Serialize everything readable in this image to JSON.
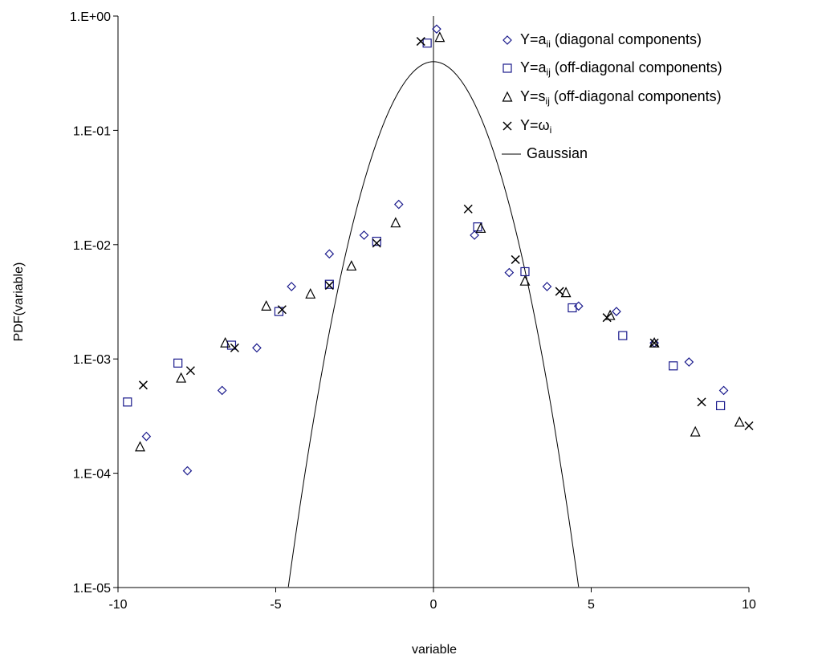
{
  "chart_data": {
    "type": "scatter",
    "xlabel": "variable",
    "ylabel": "PDF(variable)",
    "xlim": [
      -10,
      10
    ],
    "ylim": [
      1e-05,
      1
    ],
    "yscale": "log",
    "grid": false,
    "legend_position": "top-right",
    "x_ticks": [
      {
        "value": -10,
        "label": "-10"
      },
      {
        "value": -5,
        "label": "-5"
      },
      {
        "value": 0,
        "label": "0"
      },
      {
        "value": 5,
        "label": "5"
      },
      {
        "value": 10,
        "label": "10"
      }
    ],
    "y_ticks": [
      {
        "value": 1,
        "label": "1.E+00"
      },
      {
        "value": 0.1,
        "label": "1.E-01"
      },
      {
        "value": 0.01,
        "label": "1.E-02"
      },
      {
        "value": 0.001,
        "label": "1.E-03"
      },
      {
        "value": 0.0001,
        "label": "1.E-04"
      },
      {
        "value": 1e-05,
        "label": "1.E-05"
      }
    ],
    "series": [
      {
        "name": "Y=aii (diagonal components)",
        "legend": {
          "base": "Y=a",
          "sub": "ii",
          "rest": " (diagonal components)"
        },
        "marker": "diamond",
        "color": "#1a1a8c",
        "points": [
          [
            -9.1,
            0.00021
          ],
          [
            -7.8,
            0.000105
          ],
          [
            -6.7,
            0.00053
          ],
          [
            -5.6,
            0.00125
          ],
          [
            -4.5,
            0.0043
          ],
          [
            -3.3,
            0.0083
          ],
          [
            -2.2,
            0.0121
          ],
          [
            -1.1,
            0.0225
          ],
          [
            0.1,
            0.77
          ],
          [
            1.3,
            0.0121
          ],
          [
            2.4,
            0.0057
          ],
          [
            3.6,
            0.0043
          ],
          [
            4.6,
            0.0029
          ],
          [
            5.8,
            0.0026
          ],
          [
            7.0,
            0.00138
          ],
          [
            8.1,
            0.00094
          ],
          [
            9.2,
            0.00053
          ]
        ]
      },
      {
        "name": "Y=aij (off-diagonal components)",
        "legend": {
          "base": "Y=a",
          "sub": "ij",
          "rest": " (off-diagonal components)"
        },
        "marker": "square",
        "color": "#1a1a8c",
        "points": [
          [
            -9.7,
            0.00042
          ],
          [
            -8.1,
            0.00092
          ],
          [
            -6.4,
            0.00132
          ],
          [
            -4.9,
            0.0026
          ],
          [
            -3.3,
            0.0045
          ],
          [
            -1.8,
            0.0107
          ],
          [
            -0.2,
            0.58
          ],
          [
            1.4,
            0.0143
          ],
          [
            2.9,
            0.0058
          ],
          [
            4.4,
            0.0028
          ],
          [
            6.0,
            0.0016
          ],
          [
            7.6,
            0.00087
          ],
          [
            9.1,
            0.00039
          ]
        ]
      },
      {
        "name": "Y=sij (off-diagonal components)",
        "legend": {
          "base": "Y=s",
          "sub": "ij",
          "rest": " (off-diagonal components)"
        },
        "marker": "triangle",
        "color": "#000000",
        "points": [
          [
            -9.3,
            0.00017
          ],
          [
            -8.0,
            0.00068
          ],
          [
            -6.6,
            0.00138
          ],
          [
            -5.3,
            0.0029
          ],
          [
            -3.9,
            0.0037
          ],
          [
            -2.6,
            0.0065
          ],
          [
            -1.2,
            0.0155
          ],
          [
            0.2,
            0.65
          ],
          [
            1.5,
            0.0139
          ],
          [
            2.9,
            0.0048
          ],
          [
            4.2,
            0.0038
          ],
          [
            5.6,
            0.0024
          ],
          [
            7.0,
            0.00138
          ],
          [
            8.3,
            0.00023
          ],
          [
            9.7,
            0.00028
          ]
        ]
      },
      {
        "name": "Y=ωi",
        "legend": {
          "base": "Y=ω",
          "sub": "i",
          "rest": ""
        },
        "marker": "cross",
        "color": "#000000",
        "points": [
          [
            -9.2,
            0.00059
          ],
          [
            -7.7,
            0.00079
          ],
          [
            -6.3,
            0.00125
          ],
          [
            -4.8,
            0.0027
          ],
          [
            -3.3,
            0.0044
          ],
          [
            -1.8,
            0.0103
          ],
          [
            -0.4,
            0.6
          ],
          [
            1.1,
            0.0205
          ],
          [
            2.6,
            0.0074
          ],
          [
            4.0,
            0.0039
          ],
          [
            5.5,
            0.0023
          ],
          [
            7.0,
            0.00138
          ],
          [
            8.5,
            0.00042
          ],
          [
            10.0,
            0.00026
          ]
        ]
      },
      {
        "name": "Gaussian",
        "legend": {
          "base": "Gaussian",
          "sub": "",
          "rest": ""
        },
        "marker": "line",
        "color": "#000000",
        "function": "gaussian",
        "mean": 0,
        "stddev": 1
      }
    ]
  }
}
